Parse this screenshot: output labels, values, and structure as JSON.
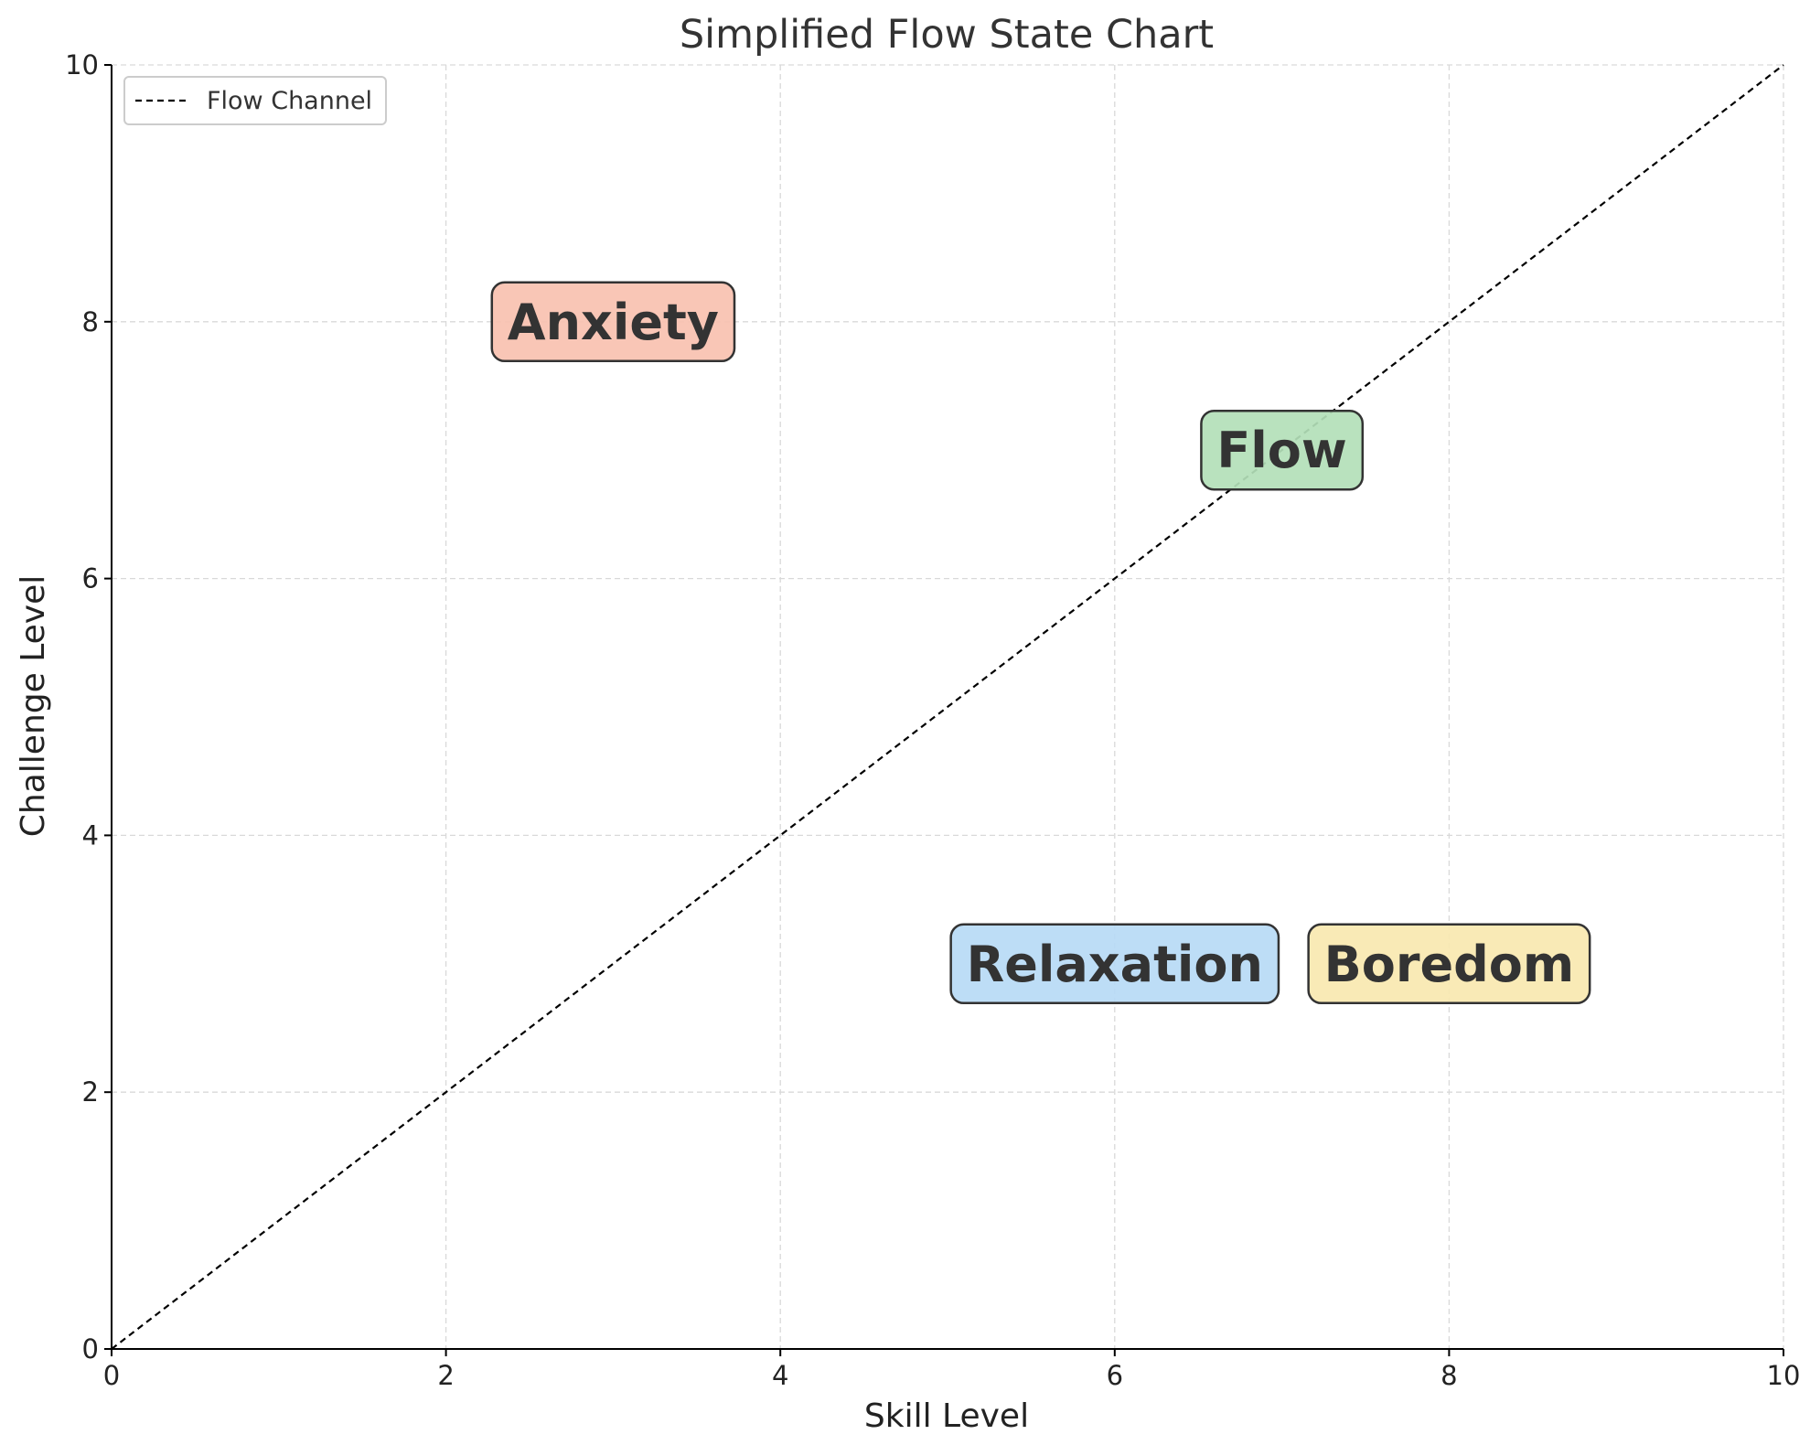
{
  "chart_data": {
    "type": "scatter",
    "title": "Simplified Flow State Chart",
    "xlabel": "Skill Level",
    "ylabel": "Challenge Level",
    "xlim": [
      0,
      10
    ],
    "ylim": [
      0,
      10
    ],
    "x_ticks": [
      0,
      2,
      4,
      6,
      8,
      10
    ],
    "y_ticks": [
      0,
      2,
      4,
      6,
      8,
      10
    ],
    "grid": true,
    "legend_position": "top-left",
    "series": [
      {
        "name": "Flow Channel",
        "style": "dashed",
        "color": "#000000",
        "x": [
          0,
          10
        ],
        "y": [
          0,
          10
        ]
      }
    ],
    "annotations": [
      {
        "text": "Anxiety",
        "x": 3,
        "y": 8,
        "color": "#f8c1b0"
      },
      {
        "text": "Flow",
        "x": 7,
        "y": 7,
        "color": "#b3dfb9"
      },
      {
        "text": "Relaxation",
        "x": 6,
        "y": 3,
        "color": "#b7daf5"
      },
      {
        "text": "Boredom",
        "x": 8,
        "y": 3,
        "color": "#f8e8b0"
      }
    ]
  }
}
